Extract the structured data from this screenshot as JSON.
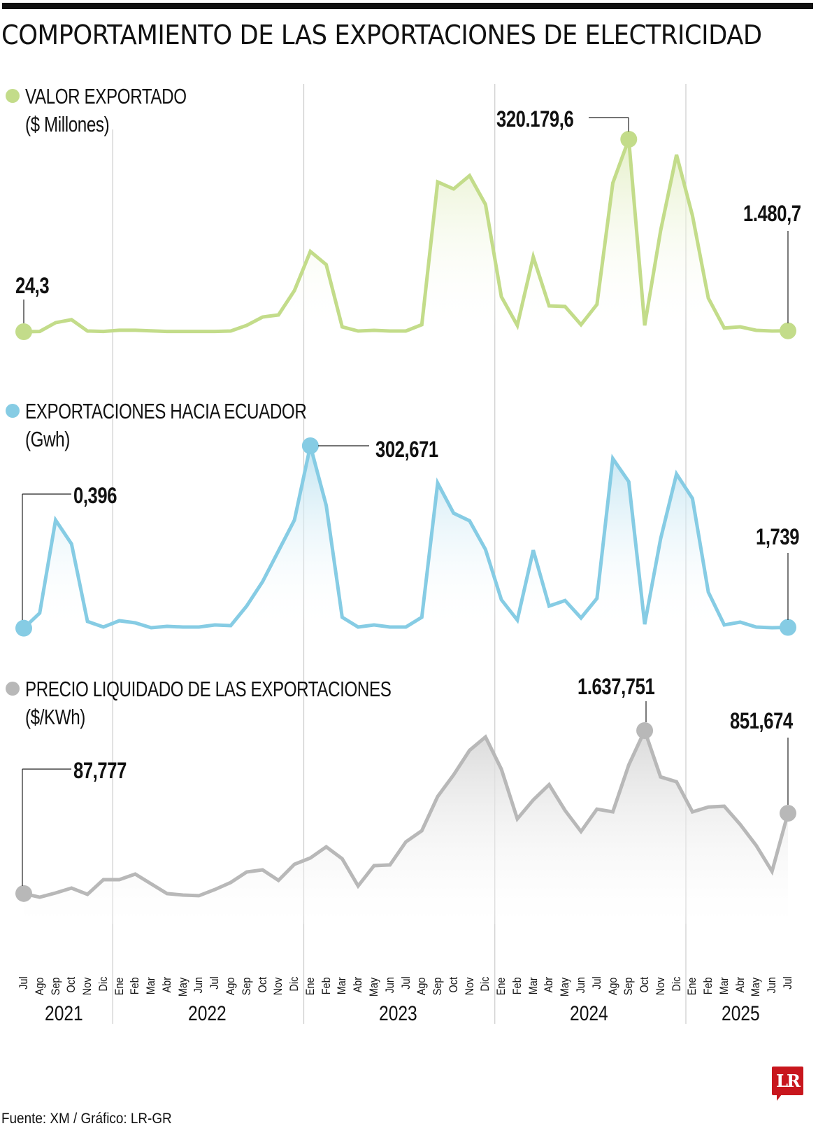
{
  "title": "COMPORTAMIENTO DE LAS EXPORTACIONES DE ELECTRICIDAD",
  "source": "Fuente: XM / Gráfico: LR-GR",
  "logo": "LR",
  "colors": {
    "green": "#c3dc8a",
    "blue": "#86cce4",
    "gray": "#b8b8b8",
    "logo_red": "#c8161d",
    "divider": "#cccccc"
  },
  "panels": [
    {
      "legend_line1": "VALOR EXPORTADO",
      "legend_line2": "($ Millones)",
      "start_label": "24,3",
      "peak_label": "320.179,6",
      "end_label": "1.480,7"
    },
    {
      "legend_line1": "EXPORTACIONES HACIA ECUADOR",
      "legend_line2": "(Gwh)",
      "start_label": "0,396",
      "peak_label": "302,671",
      "end_label": "1,739"
    },
    {
      "legend_line1": "PRECIO LIQUIDADO DE LAS EXPORTACIONES",
      "legend_line2": "($/KWh)",
      "start_label": "87,777",
      "peak_label": "1.637,751",
      "end_label": "851,674"
    }
  ],
  "x_axis": {
    "months": [
      "Jul",
      "Ago",
      "Sep",
      "Oct",
      "Nov",
      "Dic",
      "Ene",
      "Feb",
      "Mar",
      "Abr",
      "May",
      "Jun",
      "Jul",
      "Ago",
      "Sep",
      "Oct",
      "Nov",
      "Dic",
      "Ene",
      "Feb",
      "Mar",
      "Abr",
      "May",
      "Jun",
      "Jul",
      "Ago",
      "Sep",
      "Oct",
      "Nov",
      "Dic",
      "Ene",
      "Feb",
      "Mar",
      "Abr",
      "May",
      "Jun",
      "Jul",
      "Ago",
      "Sep",
      "Oct",
      "Nov",
      "Dic",
      "Ene",
      "Feb",
      "Mar",
      "Abr",
      "May",
      "Jun",
      "Jul"
    ],
    "years": [
      {
        "label": "2021",
        "first_index": 0,
        "last_index": 5
      },
      {
        "label": "2022",
        "first_index": 6,
        "last_index": 17
      },
      {
        "label": "2023",
        "first_index": 18,
        "last_index": 29
      },
      {
        "label": "2024",
        "first_index": 30,
        "last_index": 41
      },
      {
        "label": "2025",
        "first_index": 42,
        "last_index": 48
      }
    ]
  },
  "chart_data": [
    {
      "type": "area",
      "title": "VALOR EXPORTADO",
      "ylabel": "$ Millones",
      "x": [
        "Jul 2021",
        "Ago 2021",
        "Sep 2021",
        "Oct 2021",
        "Nov 2021",
        "Dic 2021",
        "Ene 2022",
        "Feb 2022",
        "Mar 2022",
        "Abr 2022",
        "May 2022",
        "Jun 2022",
        "Jul 2022",
        "Ago 2022",
        "Sep 2022",
        "Oct 2022",
        "Nov 2022",
        "Dic 2022",
        "Ene 2023",
        "Feb 2023",
        "Mar 2023",
        "Abr 2023",
        "May 2023",
        "Jun 2023",
        "Jul 2023",
        "Ago 2023",
        "Sep 2023",
        "Oct 2023",
        "Nov 2023",
        "Dic 2023",
        "Ene 2024",
        "Feb 2024",
        "Mar 2024",
        "Abr 2024",
        "May 2024",
        "Jun 2024",
        "Jul 2024",
        "Ago 2024",
        "Sep 2024",
        "Oct 2024",
        "Nov 2024",
        "Dic 2024",
        "Ene 2025",
        "Feb 2025",
        "Mar 2025",
        "Abr 2025",
        "May 2025",
        "Jun 2025",
        "Jul 2025"
      ],
      "values": [
        24.3,
        500,
        15000,
        20000,
        1200,
        500,
        2500,
        2500,
        1500,
        500,
        500,
        500,
        500,
        1200,
        10500,
        24500,
        28000,
        68500,
        133600,
        111500,
        8000,
        1200,
        2300,
        1200,
        1200,
        11600,
        249100,
        237500,
        259600,
        211800,
        58200,
        10500,
        124500,
        43000,
        41900,
        11600,
        45400,
        247400,
        320179.6,
        10500,
        167700,
        294500,
        193300,
        55900,
        6000,
        8100,
        2300,
        1200,
        1480.7
      ],
      "labels": {
        "start": "24,3",
        "peak": "320.179,6",
        "end": "1.480,7"
      },
      "peak_index": 38,
      "grid": false
    },
    {
      "type": "area",
      "title": "EXPORTACIONES HACIA ECUADOR",
      "ylabel": "Gwh",
      "x": "same as panel 1",
      "values": [
        0.396,
        25.5,
        179.5,
        140.1,
        11.6,
        2.3,
        12.7,
        9.3,
        1.2,
        3.5,
        2.3,
        2.3,
        5.8,
        4.6,
        37.1,
        77.6,
        128.5,
        179.5,
        302.671,
        203.8,
        18.5,
        2.3,
        5.8,
        2.3,
        2.3,
        18.5,
        240.8,
        191.0,
        178.3,
        130.8,
        47.5,
        13.9,
        129.7,
        37.1,
        46.3,
        17.4,
        49.8,
        281.4,
        243.2,
        6.9,
        148.2,
        255.9,
        215.4,
        60.2,
        5.8,
        10.4,
        2.3,
        1.2,
        1.739
      ],
      "labels": {
        "start": "0,396",
        "peak": "302,671",
        "end": "1,739"
      },
      "peak_index": 18,
      "grid": false
    },
    {
      "type": "area",
      "title": "PRECIO LIQUIDADO DE LAS EXPORTACIONES",
      "ylabel": "$/KWh",
      "x": "same as panel 1",
      "values": [
        87.777,
        53,
        93,
        140,
        80,
        220,
        220,
        273,
        180,
        87,
        73,
        67,
        126,
        193,
        293,
        313,
        213,
        366,
        426,
        532,
        419,
        160,
        353,
        360,
        579,
        685,
        1011,
        1217,
        1450,
        1577,
        1271,
        798,
        978,
        1124,
        878,
        678,
        891,
        865,
        1311,
        1637.751,
        1197,
        1151,
        865,
        911,
        918,
        745,
        545,
        299,
        851.674
      ],
      "labels": {
        "start": "87,777",
        "peak": "1.637,751",
        "end": "851,674"
      },
      "peak_index": 39,
      "grid": false
    }
  ]
}
